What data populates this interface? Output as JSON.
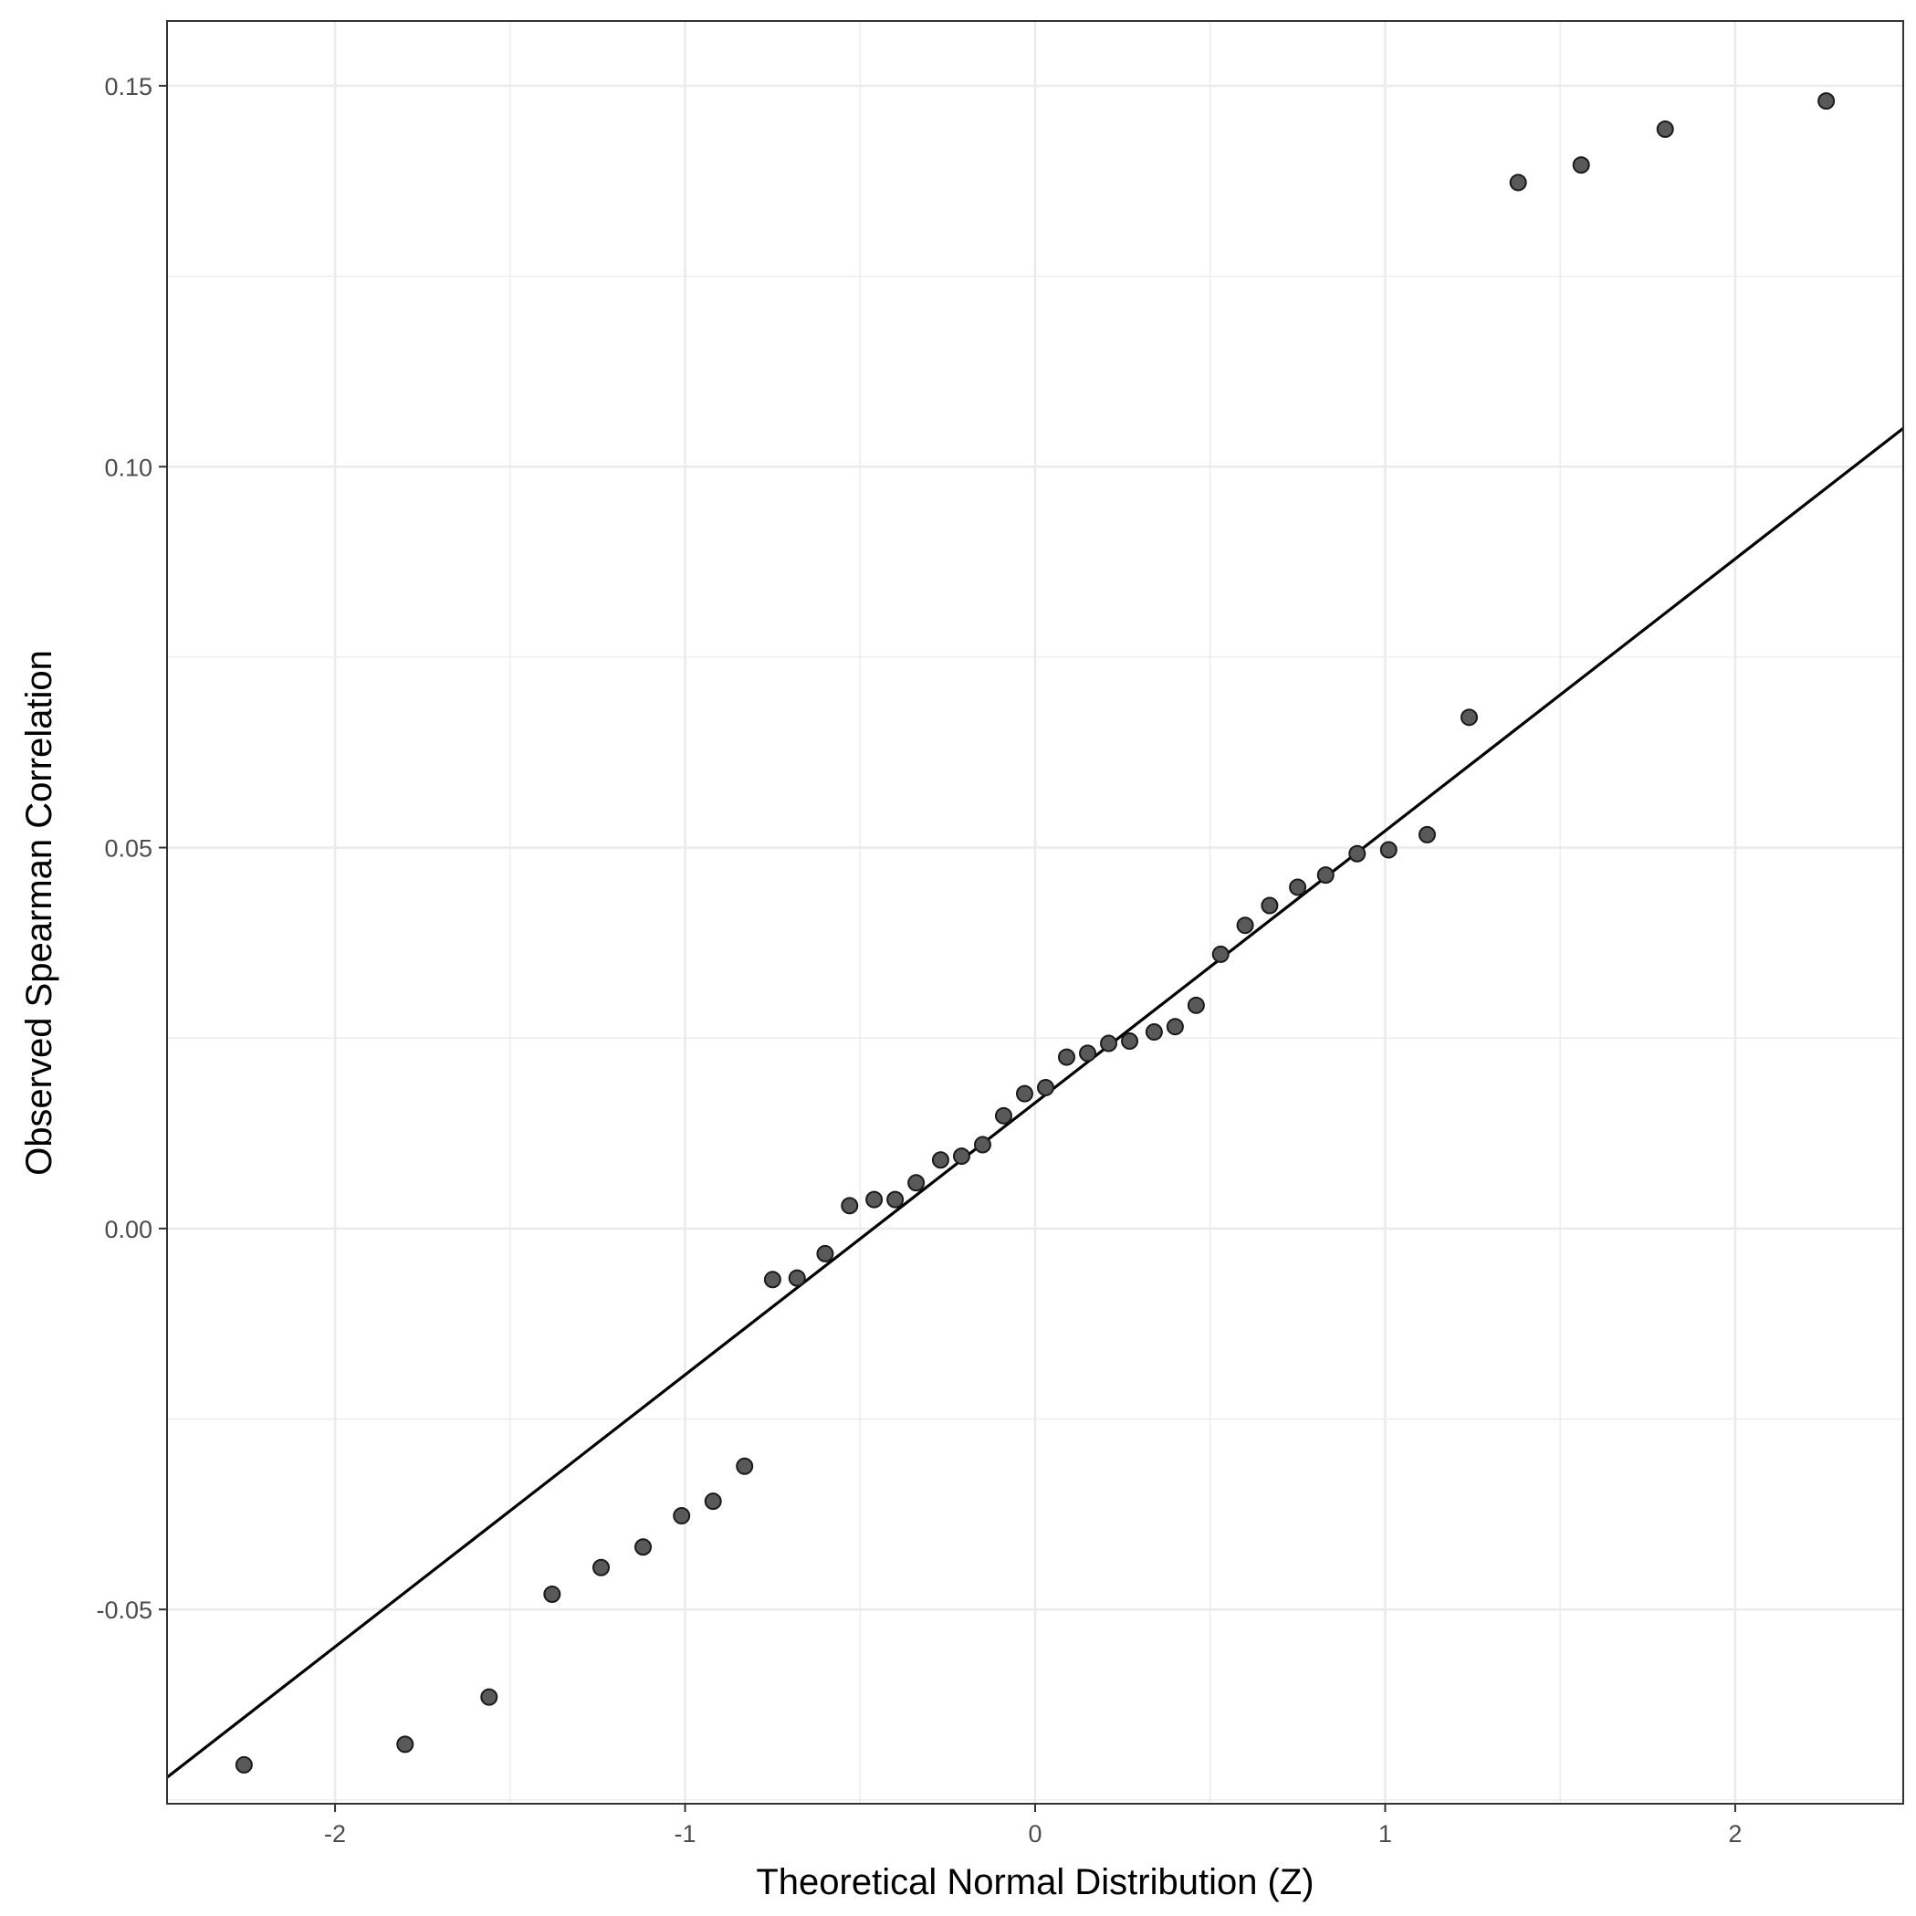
{
  "chart_data": {
    "type": "scatter",
    "title": "",
    "xlabel": "Theoretical Normal Distribution (Z)",
    "ylabel": "Observed Spearman Correlation",
    "xlim": [
      -2.48,
      2.48
    ],
    "ylim": [
      -0.0755,
      0.1585
    ],
    "x_ticks": [
      -2,
      -1,
      0,
      1,
      2
    ],
    "x_tick_labels": [
      "-2",
      "-1",
      "0",
      "1",
      "2"
    ],
    "y_ticks": [
      -0.05,
      0.0,
      0.05,
      0.1,
      0.15
    ],
    "y_tick_labels": [
      "-0.05",
      "0.00",
      "0.05",
      "0.10",
      "0.15"
    ],
    "x_minor_ticks": [
      -1.5,
      -0.5,
      0.5,
      1.5
    ],
    "y_minor_ticks": [
      -0.075,
      -0.025,
      0.025,
      0.075,
      0.125
    ],
    "grid": true,
    "point_color": "#595959",
    "line_color": "#000000",
    "reference_line": {
      "intercept": 0.0165,
      "slope": 0.0357
    },
    "points": [
      {
        "x": -2.26,
        "y": -0.0704
      },
      {
        "x": -1.8,
        "y": -0.0677
      },
      {
        "x": -1.56,
        "y": -0.0615
      },
      {
        "x": -1.38,
        "y": -0.048
      },
      {
        "x": -1.24,
        "y": -0.0445
      },
      {
        "x": -1.12,
        "y": -0.0418
      },
      {
        "x": -1.01,
        "y": -0.0377
      },
      {
        "x": -0.92,
        "y": -0.0358
      },
      {
        "x": -0.83,
        "y": -0.0312
      },
      {
        "x": -0.75,
        "y": -0.0067
      },
      {
        "x": -0.68,
        "y": -0.0065
      },
      {
        "x": -0.6,
        "y": -0.0033
      },
      {
        "x": -0.53,
        "y": 0.003
      },
      {
        "x": -0.46,
        "y": 0.0038
      },
      {
        "x": -0.4,
        "y": 0.0038
      },
      {
        "x": -0.34,
        "y": 0.006
      },
      {
        "x": -0.27,
        "y": 0.009
      },
      {
        "x": -0.21,
        "y": 0.0095
      },
      {
        "x": -0.15,
        "y": 0.011
      },
      {
        "x": -0.09,
        "y": 0.0148
      },
      {
        "x": -0.03,
        "y": 0.0177
      },
      {
        "x": 0.03,
        "y": 0.0185
      },
      {
        "x": 0.09,
        "y": 0.0225
      },
      {
        "x": 0.15,
        "y": 0.023
      },
      {
        "x": 0.21,
        "y": 0.0243
      },
      {
        "x": 0.27,
        "y": 0.0246
      },
      {
        "x": 0.34,
        "y": 0.0258
      },
      {
        "x": 0.4,
        "y": 0.0265
      },
      {
        "x": 0.46,
        "y": 0.0293
      },
      {
        "x": 0.53,
        "y": 0.036
      },
      {
        "x": 0.6,
        "y": 0.0398
      },
      {
        "x": 0.67,
        "y": 0.0424
      },
      {
        "x": 0.75,
        "y": 0.0448
      },
      {
        "x": 0.83,
        "y": 0.0464
      },
      {
        "x": 0.92,
        "y": 0.0492
      },
      {
        "x": 1.01,
        "y": 0.0497
      },
      {
        "x": 1.12,
        "y": 0.0517
      },
      {
        "x": 1.24,
        "y": 0.0671
      },
      {
        "x": 1.38,
        "y": 0.1373
      },
      {
        "x": 1.56,
        "y": 0.1396
      },
      {
        "x": 1.8,
        "y": 0.1443
      },
      {
        "x": 2.26,
        "y": 0.148
      }
    ]
  }
}
